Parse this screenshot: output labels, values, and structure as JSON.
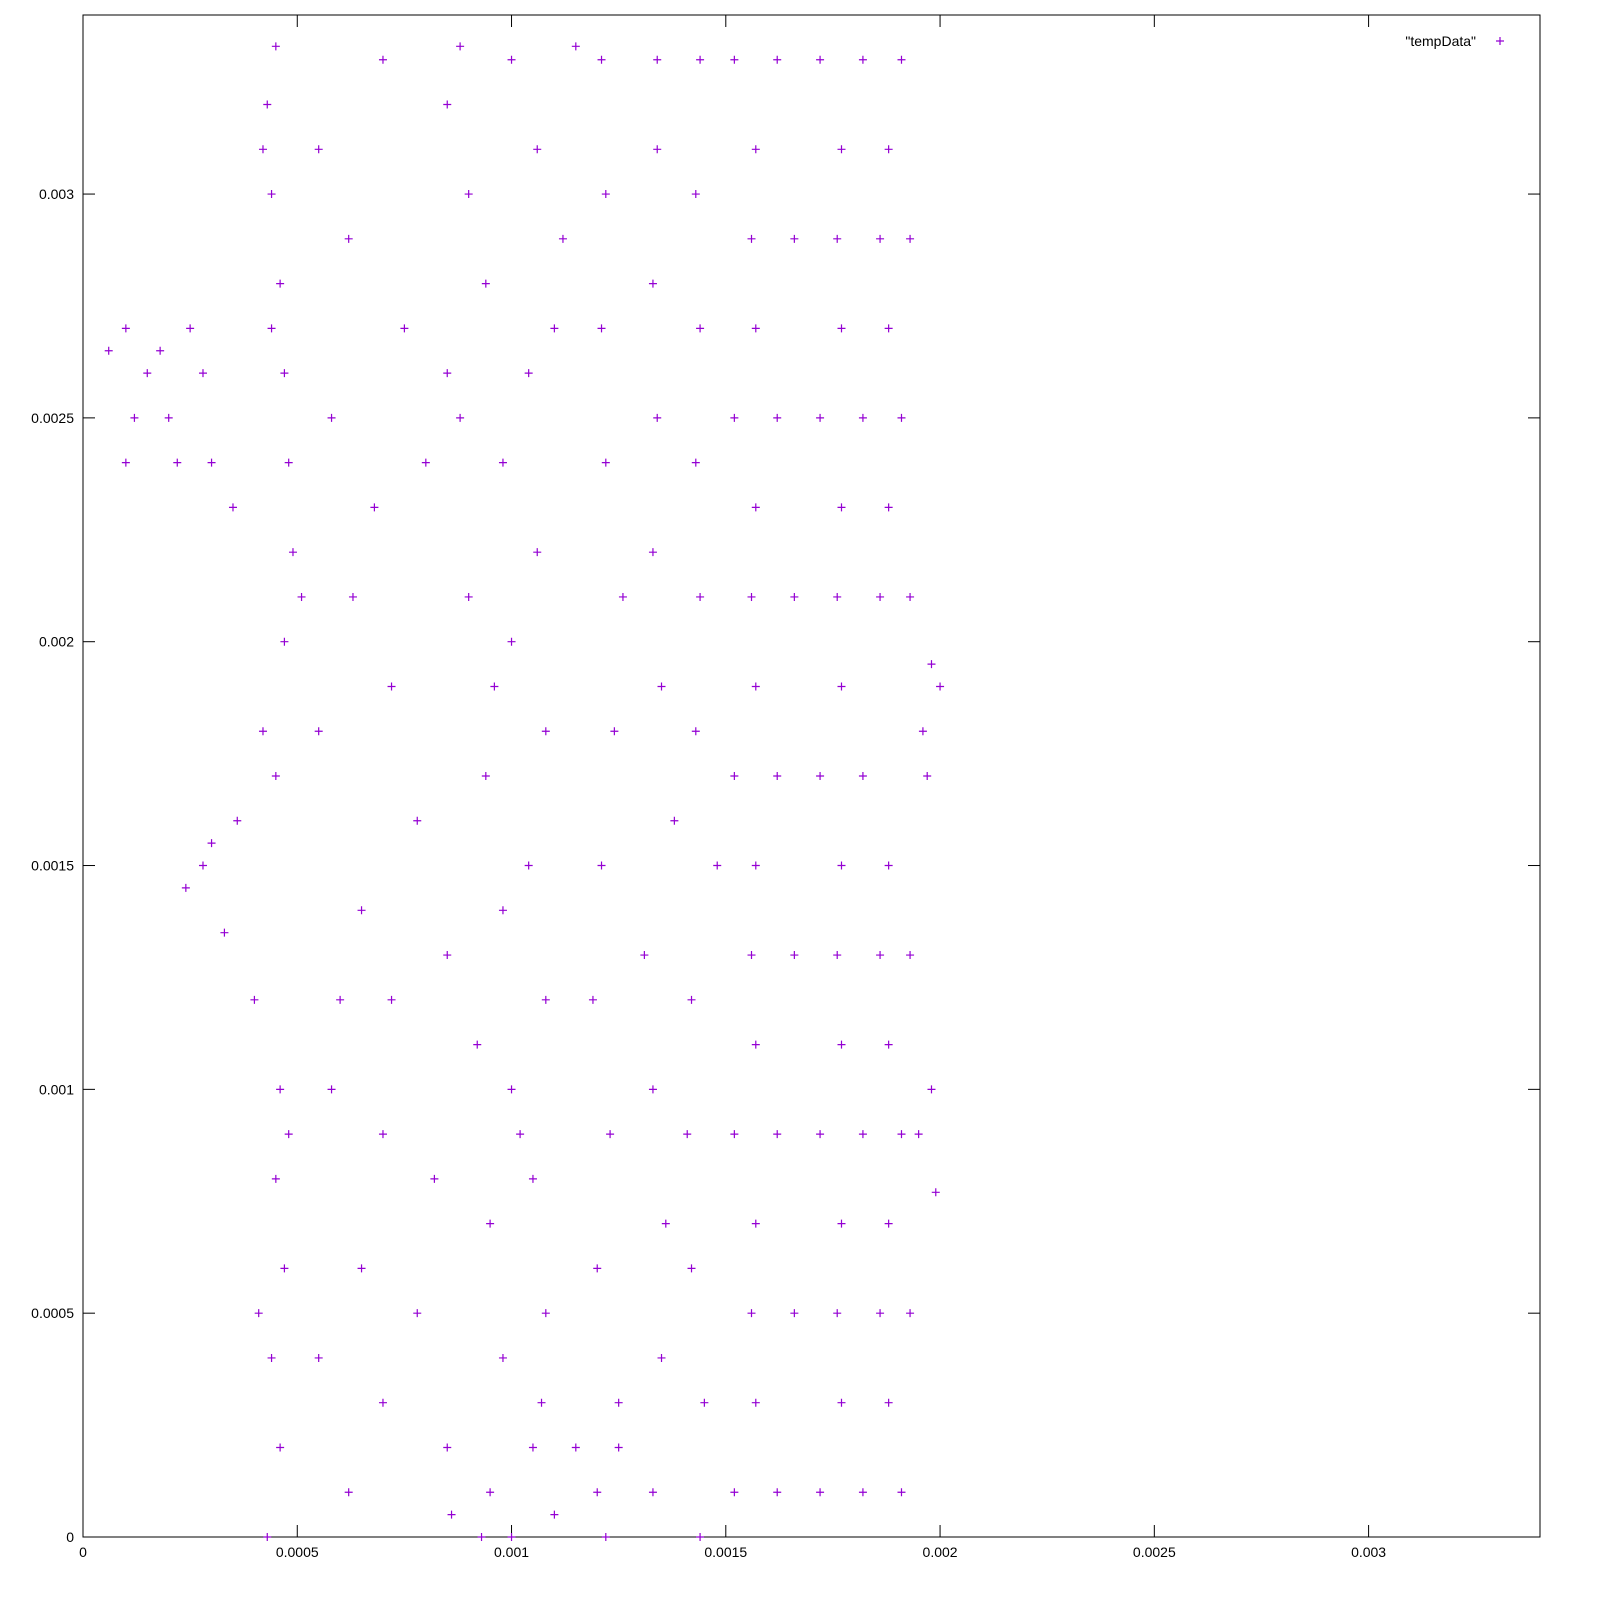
{
  "chart_data": {
    "type": "scatter",
    "xlim": [
      0,
      0.0034
    ],
    "ylim": [
      0,
      0.0034
    ],
    "xticks": [
      0,
      0.0005,
      0.001,
      0.0015,
      0.002,
      0.0025,
      0.003
    ],
    "yticks": [
      0,
      0.0005,
      0.001,
      0.0015,
      0.002,
      0.0025,
      0.003
    ],
    "legend": "top-right",
    "series": [
      {
        "name": "\"tempData\"",
        "color": "#9400d3",
        "x": [
          0.00043,
          0.00046,
          0.00044,
          0.00047,
          0.00045,
          0.00046,
          0.0004,
          0.00033,
          0.00028,
          0.00036,
          0.00042,
          0.00047,
          0.00049,
          0.00048,
          0.00047,
          0.00046,
          0.00044,
          0.00043,
          0.00045,
          0.00041,
          0.00048,
          0.00045,
          0.00051,
          0.00044,
          0.00042,
          0.00024,
          0.0003,
          6e-05,
          0.0001,
          0.00012,
          0.00015,
          0.0002,
          0.00022,
          0.00018,
          0.00025,
          0.0003,
          0.00035,
          0.00028,
          0.0001,
          0.00055,
          0.00062,
          0.0007,
          0.00075,
          0.00058,
          0.00068,
          0.0008,
          0.00085,
          0.00063,
          0.00072,
          0.00055,
          0.00078,
          0.00065,
          0.00085,
          0.0006,
          0.00072,
          0.00058,
          0.0007,
          0.00082,
          0.00065,
          0.00078,
          0.00055,
          0.0007,
          0.00085,
          0.00062,
          0.00086,
          0.001,
          0.00095,
          0.00105,
          0.00098,
          0.00108,
          0.00095,
          0.00105,
          0.001,
          0.00092,
          0.00108,
          0.00098,
          0.00104,
          0.00094,
          0.00108,
          0.001,
          0.0009,
          0.00106,
          0.00098,
          0.00088,
          0.00104,
          0.00094,
          0.00112,
          0.0009,
          0.00106,
          0.00085,
          0.001,
          0.00115,
          0.00088,
          0.00093,
          0.00107,
          0.00102,
          0.00096,
          0.0011,
          0.00115,
          0.0012,
          0.0011,
          0.00125,
          0.00122,
          0.00125,
          0.0012,
          0.00123,
          0.00119,
          0.00121,
          0.00124,
          0.00126,
          0.00122,
          0.00121,
          0.00122,
          0.00121,
          0.00133,
          0.00135,
          0.00136,
          0.00133,
          0.00131,
          0.00138,
          0.00135,
          0.00133,
          0.00134,
          0.00133,
          0.00134,
          0.00134,
          0.00144,
          0.00145,
          0.00142,
          0.00141,
          0.00142,
          0.00148,
          0.00143,
          0.00144,
          0.00143,
          0.00144,
          0.00143,
          0.00144,
          0.00152,
          0.00162,
          0.00172,
          0.00182,
          0.00191,
          0.00156,
          0.00166,
          0.00176,
          0.00186,
          0.00193,
          0.00152,
          0.00162,
          0.00172,
          0.00182,
          0.00191,
          0.00156,
          0.00166,
          0.00176,
          0.00186,
          0.00193,
          0.00152,
          0.00162,
          0.00172,
          0.00182,
          0.00197,
          0.00156,
          0.00166,
          0.00176,
          0.00186,
          0.00193,
          0.00152,
          0.00162,
          0.00172,
          0.00182,
          0.00191,
          0.00156,
          0.00166,
          0.00176,
          0.00186,
          0.00193,
          0.00152,
          0.00162,
          0.00172,
          0.00182,
          0.00191,
          0.00157,
          0.00177,
          0.00188,
          0.00157,
          0.00177,
          0.00188,
          0.00157,
          0.00177,
          0.00188,
          0.00157,
          0.00177,
          0.00188,
          0.00157,
          0.00177,
          0.002,
          0.00157,
          0.00177,
          0.00188,
          0.00157,
          0.00177,
          0.00188,
          0.00157,
          0.00177,
          0.00188,
          0.00196,
          0.00198,
          0.00195,
          0.00198,
          0.00199
        ],
        "values": [
          0,
          0.0002,
          0.0004,
          0.0006,
          0.0008,
          0.001,
          0.0012,
          0.00135,
          0.0015,
          0.0016,
          0.0018,
          0.002,
          0.0022,
          0.0024,
          0.0026,
          0.0028,
          0.003,
          0.0032,
          0.00333,
          0.0005,
          0.0009,
          0.0017,
          0.0021,
          0.0027,
          0.0031,
          0.00145,
          0.00155,
          0.00265,
          0.0027,
          0.0025,
          0.0026,
          0.0025,
          0.0024,
          0.00265,
          0.0027,
          0.0024,
          0.0023,
          0.0026,
          0.0024,
          0.0031,
          0.0029,
          0.0033,
          0.0027,
          0.0025,
          0.0023,
          0.0024,
          0.0026,
          0.0021,
          0.0019,
          0.0018,
          0.0016,
          0.0014,
          0.0013,
          0.0012,
          0.0012,
          0.001,
          0.0009,
          0.0008,
          0.0006,
          0.0005,
          0.0004,
          0.0003,
          0.0002,
          0.0001,
          5e-05,
          0,
          0.0001,
          0.0002,
          0.0004,
          0.0005,
          0.0007,
          0.0008,
          0.001,
          0.0011,
          0.0012,
          0.0014,
          0.0015,
          0.0017,
          0.0018,
          0.002,
          0.0021,
          0.0022,
          0.0024,
          0.0025,
          0.0026,
          0.0028,
          0.0029,
          0.003,
          0.0031,
          0.0032,
          0.0033,
          0.00333,
          0.00333,
          0,
          0.0003,
          0.0009,
          0.0019,
          0.0027,
          0.0002,
          0.0001,
          5e-05,
          0.0002,
          0,
          0.0003,
          0.0006,
          0.0009,
          0.0012,
          0.0015,
          0.0018,
          0.0021,
          0.0024,
          0.0027,
          0.003,
          0.0033,
          0.0001,
          0.0004,
          0.0007,
          0.001,
          0.0013,
          0.0016,
          0.0019,
          0.0022,
          0.0025,
          0.0028,
          0.0031,
          0.0033,
          0,
          0.0003,
          0.0006,
          0.0009,
          0.0012,
          0.0015,
          0.0018,
          0.0021,
          0.0024,
          0.0027,
          0.003,
          0.0033,
          0.0001,
          0.0001,
          0.0001,
          0.0001,
          0.0001,
          0.0005,
          0.0005,
          0.0005,
          0.0005,
          0.0005,
          0.0009,
          0.0009,
          0.0009,
          0.0009,
          0.0009,
          0.0013,
          0.0013,
          0.0013,
          0.0013,
          0.0013,
          0.0017,
          0.0017,
          0.0017,
          0.0017,
          0.0017,
          0.0021,
          0.0021,
          0.0021,
          0.0021,
          0.0021,
          0.0025,
          0.0025,
          0.0025,
          0.0025,
          0.0025,
          0.0029,
          0.0029,
          0.0029,
          0.0029,
          0.0029,
          0.0033,
          0.0033,
          0.0033,
          0.0033,
          0.0033,
          0.0003,
          0.0003,
          0.0003,
          0.0007,
          0.0007,
          0.0007,
          0.0011,
          0.0011,
          0.0011,
          0.0015,
          0.0015,
          0.0015,
          0.0019,
          0.0019,
          0.0019,
          0.0023,
          0.0023,
          0.0023,
          0.0027,
          0.0027,
          0.0027,
          0.0031,
          0.0031,
          0.0031,
          0.0018,
          0.00195,
          0.0009,
          0.001,
          0.00077
        ]
      }
    ]
  }
}
